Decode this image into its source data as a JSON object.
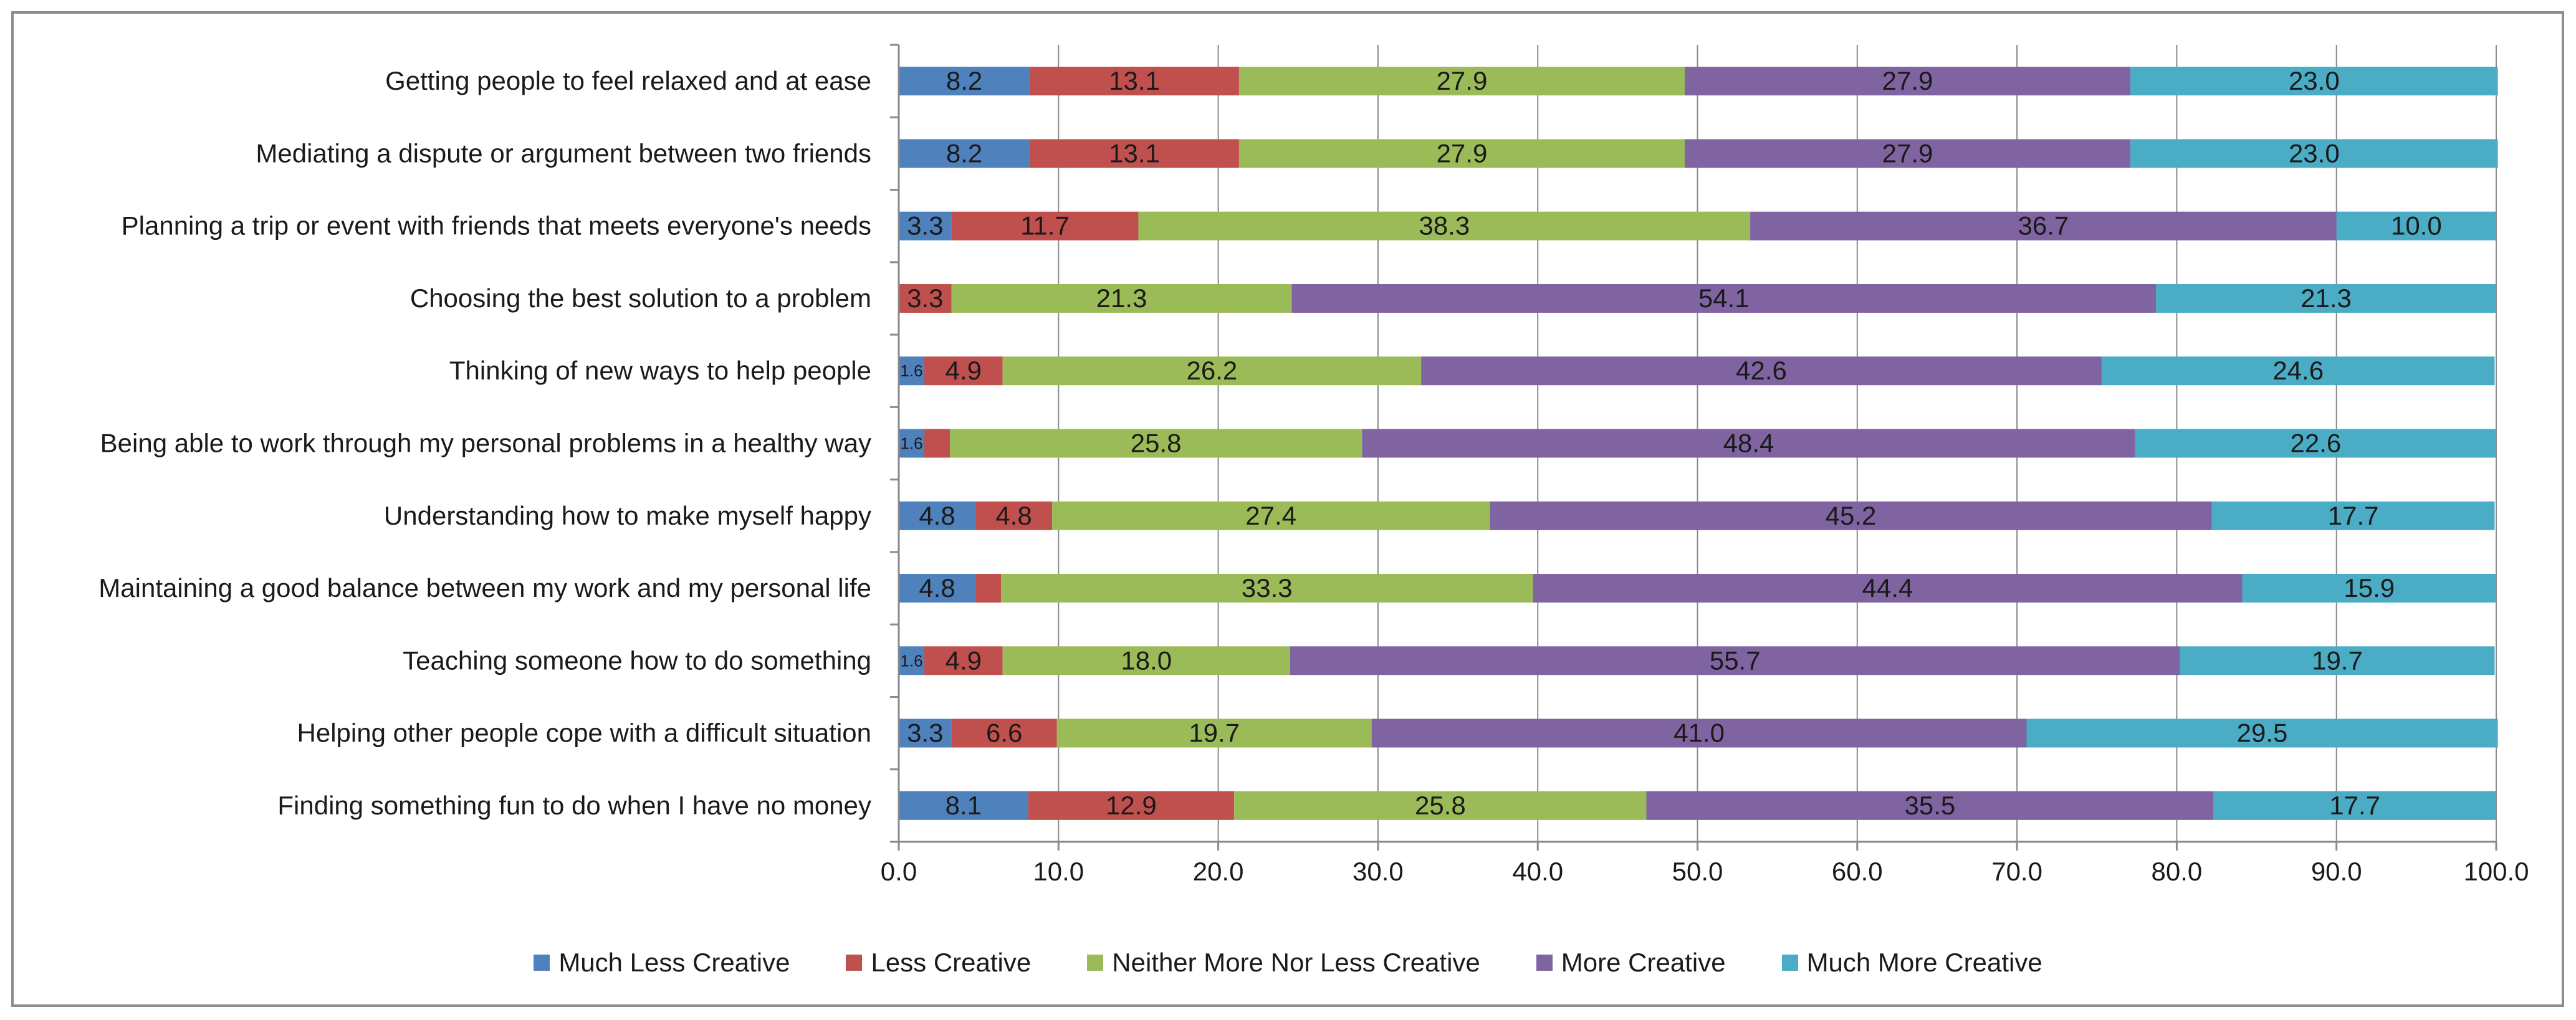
{
  "chart_data": {
    "type": "bar",
    "orientation": "horizontal",
    "stacked": true,
    "categories": [
      "Getting people to feel relaxed and at ease",
      "Mediating a dispute or argument between two friends",
      "Planning a trip or event with friends that meets everyone's needs",
      "Choosing the best solution to a problem",
      "Thinking of new ways to help people",
      "Being able to work through my personal problems in a healthy way",
      "Understanding how to make myself happy",
      "Maintaining a good balance between my work and my personal life",
      "Teaching someone how to do something",
      "Helping other people cope with a difficult situation",
      "Finding something fun to do when I have no money"
    ],
    "series": [
      {
        "name": "Much Less Creative",
        "color": "#4f81bd",
        "values": [
          8.2,
          8.2,
          3.3,
          0,
          1.6,
          1.6,
          4.8,
          4.8,
          1.6,
          3.3,
          8.1
        ],
        "labels": [
          "8.2",
          "8.2",
          "3.3",
          "",
          "1.6",
          "1.6",
          "4.8",
          "4.8",
          "1.6",
          "3.3",
          "8.1"
        ]
      },
      {
        "name": "Less Creative",
        "color": "#c0504d",
        "values": [
          13.1,
          13.1,
          11.7,
          3.3,
          4.9,
          1.6,
          4.8,
          1.6,
          4.9,
          6.6,
          12.9
        ],
        "labels": [
          "13.1",
          "13.1",
          "11.7",
          "3.3",
          "4.9",
          "",
          "4.8",
          "",
          "4.9",
          "6.6",
          "12.9"
        ]
      },
      {
        "name": "Neither More Nor Less Creative",
        "color": "#9bbb59",
        "values": [
          27.9,
          27.9,
          38.3,
          21.3,
          26.2,
          25.8,
          27.4,
          33.3,
          18.0,
          19.7,
          25.8
        ],
        "labels": [
          "27.9",
          "27.9",
          "38.3",
          "21.3",
          "26.2",
          "25.8",
          "27.4",
          "33.3",
          "18.0",
          "19.7",
          "25.8"
        ]
      },
      {
        "name": "More Creative",
        "color": "#8064a2",
        "values": [
          27.9,
          27.9,
          36.7,
          54.1,
          42.6,
          48.4,
          45.2,
          44.4,
          55.7,
          41.0,
          35.5
        ],
        "labels": [
          "27.9",
          "27.9",
          "36.7",
          "54.1",
          "42.6",
          "48.4",
          "45.2",
          "44.4",
          "55.7",
          "41.0",
          "35.5"
        ]
      },
      {
        "name": "Much More Creative",
        "color": "#4bacc6",
        "values": [
          23.0,
          23.0,
          10.0,
          21.3,
          24.6,
          22.6,
          17.7,
          15.9,
          19.7,
          29.5,
          17.7
        ],
        "labels": [
          "23.0",
          "23.0",
          "10.0",
          "21.3",
          "24.6",
          "22.6",
          "17.7",
          "15.9",
          "19.7",
          "29.5",
          "17.7"
        ]
      }
    ],
    "small_label_values": [
      "1.6"
    ],
    "xlim": [
      0,
      100
    ],
    "x_ticks": [
      "0.0",
      "10.0",
      "20.0",
      "30.0",
      "40.0",
      "50.0",
      "60.0",
      "70.0",
      "80.0",
      "90.0",
      "100.0"
    ],
    "grid": "vertical",
    "legend_position": "bottom",
    "title": "",
    "xlabel": "",
    "ylabel": ""
  }
}
